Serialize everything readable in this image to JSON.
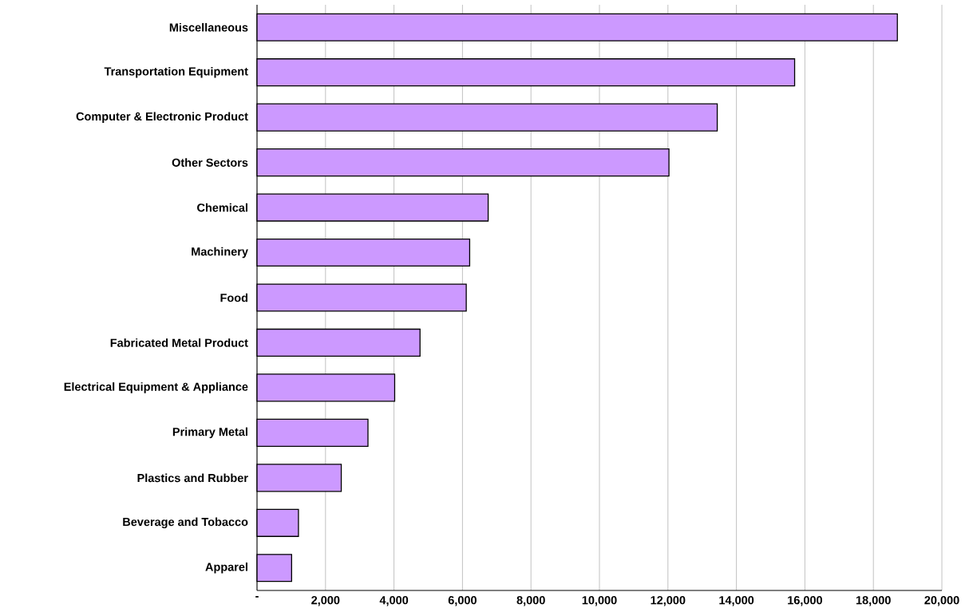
{
  "chart_data": {
    "type": "bar",
    "orientation": "horizontal",
    "categories": [
      "Miscellaneous",
      "Transportation Equipment",
      "Computer & Electronic Product",
      "Other Sectors",
      "Chemical",
      "Machinery",
      "Food",
      "Fabricated Metal Product",
      "Electrical Equipment & Appliance",
      "Primary Metal",
      "Plastics and Rubber",
      "Beverage and Tobacco",
      "Apparel"
    ],
    "values": [
      18700,
      15700,
      13440,
      12030,
      6750,
      6210,
      6110,
      4760,
      4020,
      3240,
      2460,
      1210,
      1010
    ],
    "color": "#cc99ff",
    "xlim": [
      0,
      20000
    ],
    "xticks": [
      {
        "value": 0,
        "label": "-"
      },
      {
        "value": 2000,
        "label": "2,000"
      },
      {
        "value": 4000,
        "label": "4,000"
      },
      {
        "value": 6000,
        "label": "6,000"
      },
      {
        "value": 8000,
        "label": "8,000"
      },
      {
        "value": 10000,
        "label": "10,000"
      },
      {
        "value": 12000,
        "label": "12,000"
      },
      {
        "value": 14000,
        "label": "14,000"
      },
      {
        "value": 16000,
        "label": "16,000"
      },
      {
        "value": 18000,
        "label": "18,000"
      },
      {
        "value": 20000,
        "label": "20,000"
      }
    ],
    "grid": "x"
  }
}
